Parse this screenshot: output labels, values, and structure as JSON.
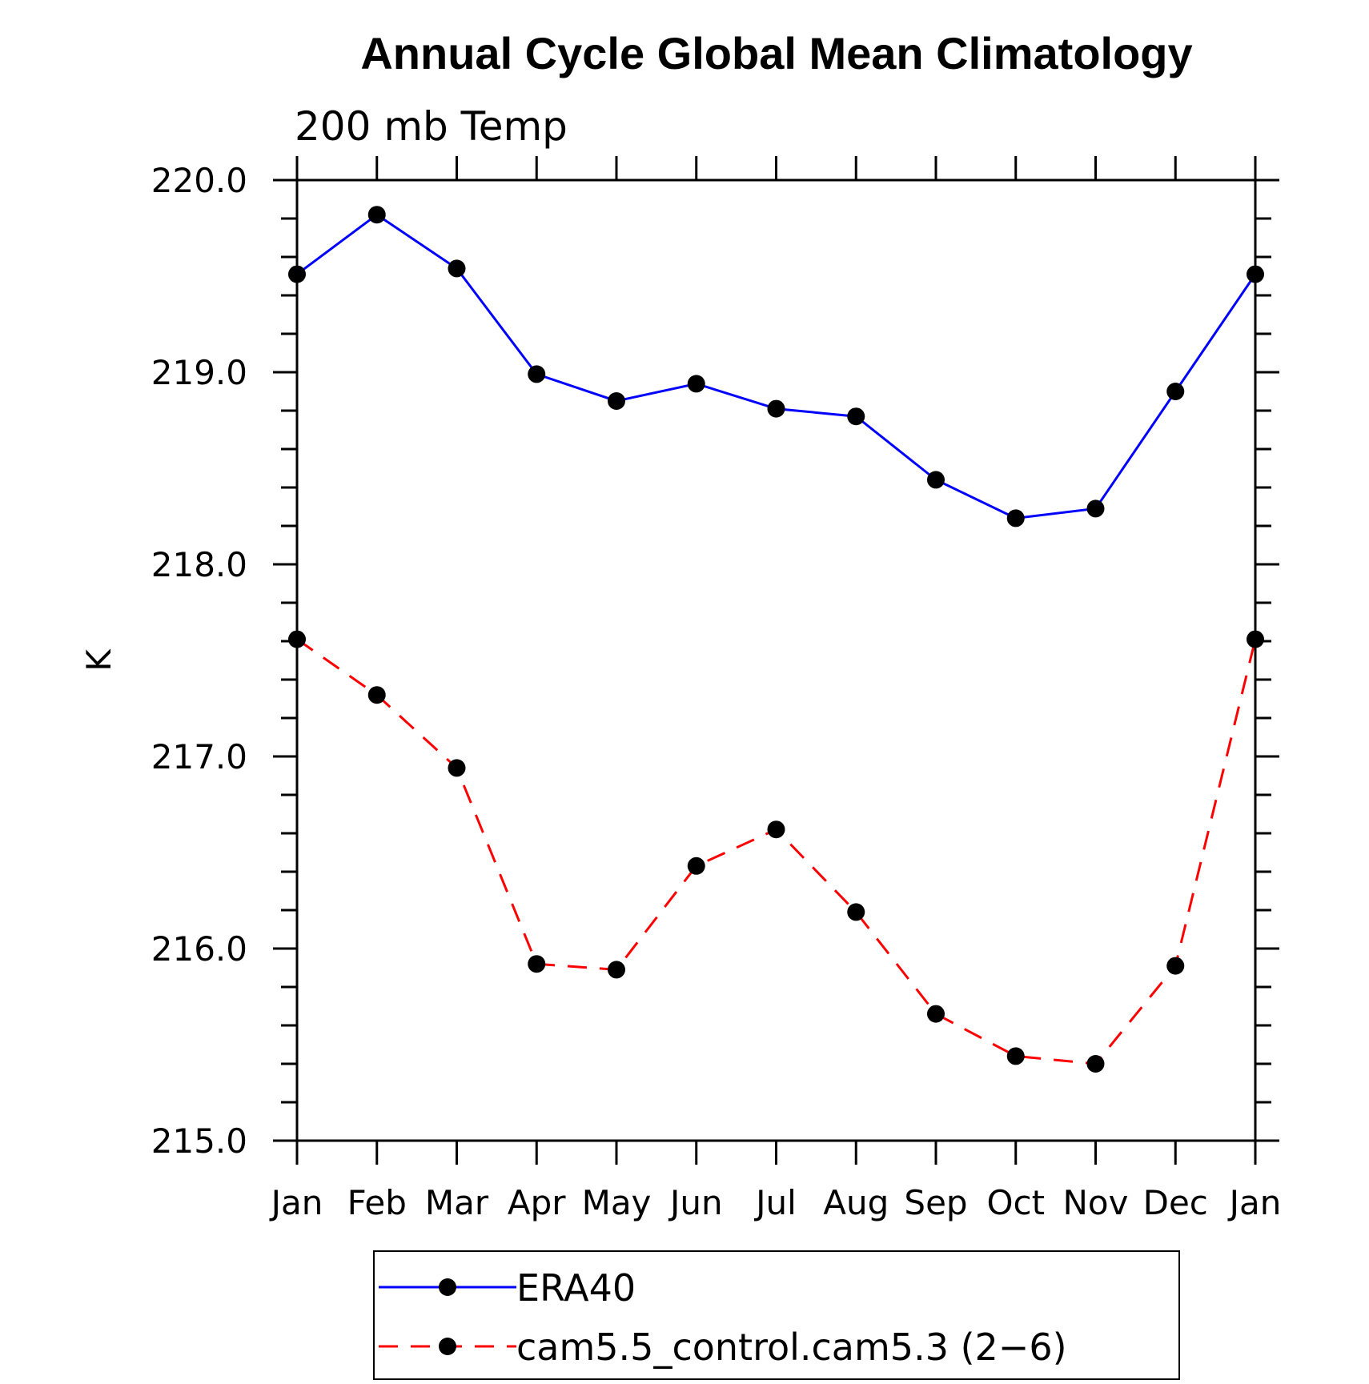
{
  "chart_data": {
    "type": "line",
    "title": "Annual Cycle Global Mean Climatology",
    "subtitle": "200 mb Temp",
    "ylabel": "K",
    "xlabel": "",
    "categories": [
      "Jan",
      "Feb",
      "Mar",
      "Apr",
      "May",
      "Jun",
      "Jul",
      "Aug",
      "Sep",
      "Oct",
      "Nov",
      "Dec",
      "Jan"
    ],
    "ylim": [
      215.0,
      220.0
    ],
    "yticks": [
      "215.0",
      "216.0",
      "217.0",
      "218.0",
      "219.0",
      "220.0"
    ],
    "series": [
      {
        "name": "ERA40",
        "color": "#0000ff",
        "dash": "solid",
        "values": [
          219.51,
          219.82,
          219.54,
          218.99,
          218.85,
          218.94,
          218.81,
          218.77,
          218.44,
          218.24,
          218.29,
          218.9,
          219.51
        ]
      },
      {
        "name": "cam5.5_control.cam5.3 (2-6)",
        "color": "#ff0000",
        "dash": "dashed",
        "values": [
          217.61,
          217.32,
          216.94,
          215.92,
          215.89,
          216.43,
          216.62,
          216.19,
          215.66,
          215.44,
          215.4,
          215.91,
          217.61
        ]
      }
    ],
    "legend": {
      "position": "bottom-center",
      "entries": [
        "ERA40",
        "cam5.5_control.cam5.3 (2−6)"
      ]
    }
  }
}
